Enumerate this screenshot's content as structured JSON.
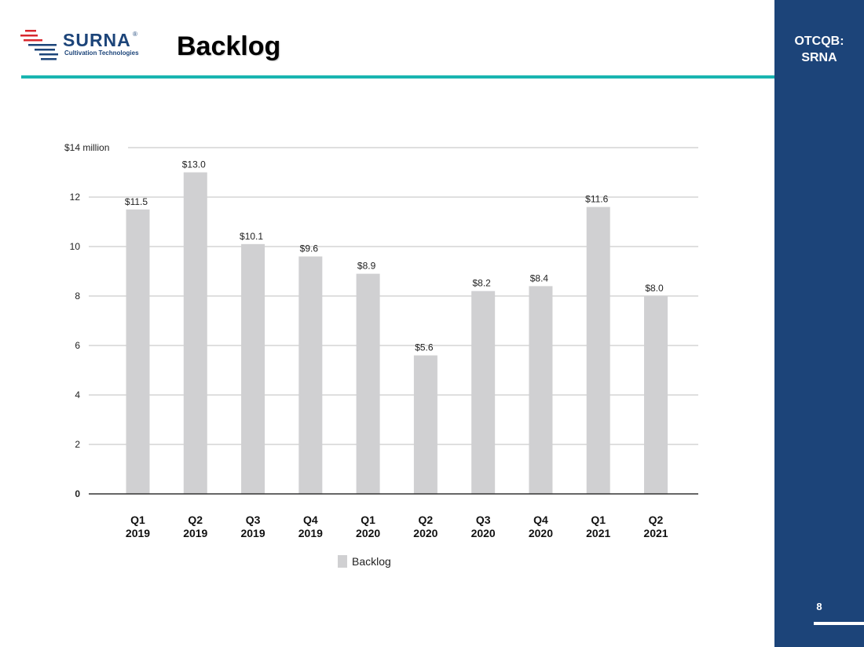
{
  "header": {
    "logo_text": "SURNA",
    "logo_registered": "®",
    "logo_subtitle": "Cultivation Technologies",
    "title": "Backlog"
  },
  "sidebar": {
    "ticker_line1": "OTCQB:",
    "ticker_line2": "SRNA",
    "page_number": "8"
  },
  "colors": {
    "sidebar": "#1c4479",
    "accent_rule": "#19b5b0",
    "bar": "#d0d0d2",
    "logo_red": "#d8282f",
    "logo_blue": "#1c4479"
  },
  "chart_data": {
    "type": "bar",
    "categories": [
      [
        "Q1",
        "2019"
      ],
      [
        "Q2",
        "2019"
      ],
      [
        "Q3",
        "2019"
      ],
      [
        "Q4",
        "2019"
      ],
      [
        "Q1",
        "2020"
      ],
      [
        "Q2",
        "2020"
      ],
      [
        "Q3",
        "2020"
      ],
      [
        "Q4",
        "2020"
      ],
      [
        "Q1",
        "2021"
      ],
      [
        "Q2",
        "2021"
      ]
    ],
    "series": [
      {
        "name": "Backlog",
        "values": [
          11.5,
          13.0,
          10.1,
          9.6,
          8.9,
          5.6,
          8.2,
          8.4,
          11.6,
          8.0
        ],
        "labels": [
          "$11.5",
          "$13.0",
          "$10.1",
          "$9.6",
          "$8.9",
          "$5.6",
          "$8.2",
          "$8.4",
          "$11.6",
          "$8.0"
        ]
      }
    ],
    "ylim": [
      0,
      14
    ],
    "yticks": [
      0,
      2,
      4,
      6,
      8,
      10,
      12,
      14
    ],
    "ytick_labels": [
      "0",
      "2",
      "4",
      "6",
      "8",
      "10",
      "12",
      "$14  million"
    ],
    "grid": true,
    "legend": "bottom-center"
  }
}
